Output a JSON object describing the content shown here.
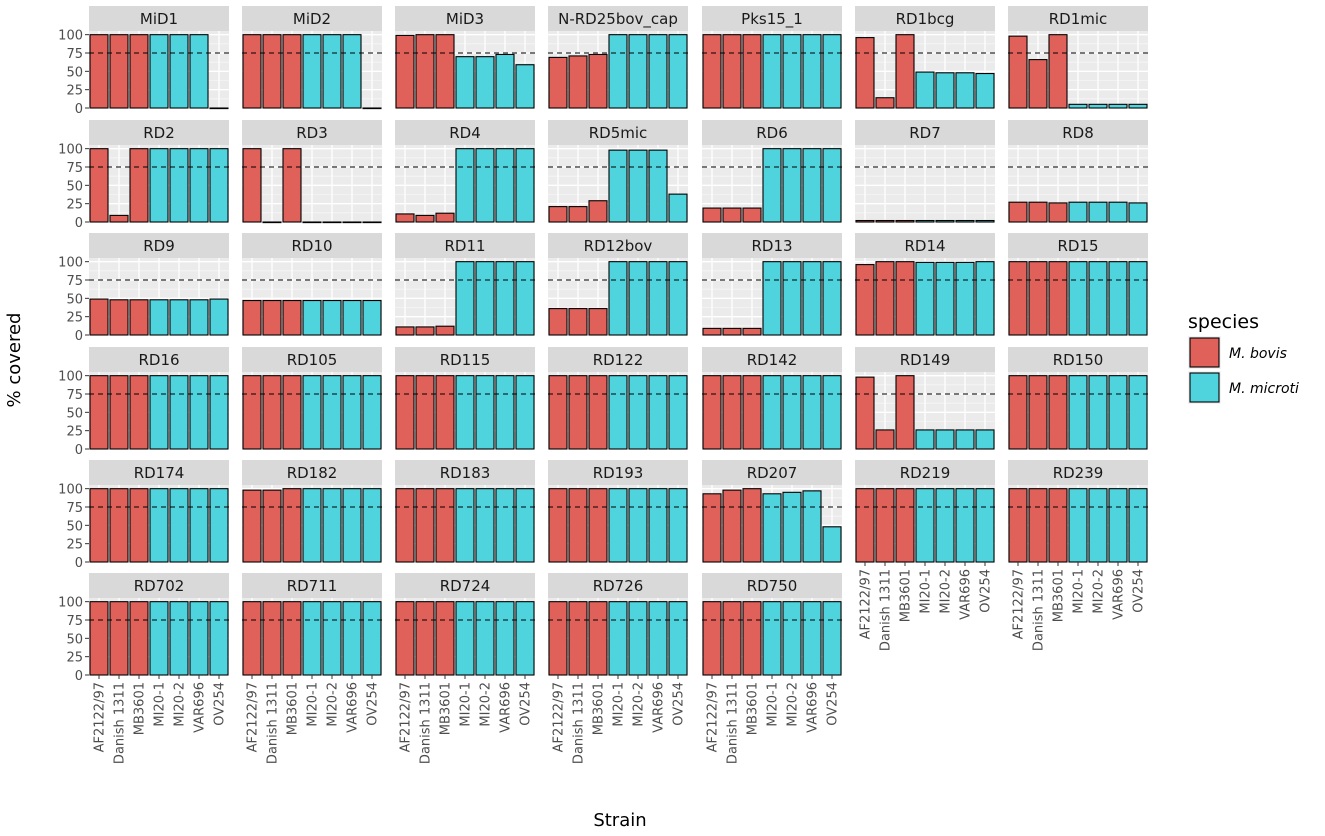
{
  "chart_data": {
    "type": "bar",
    "subtype": "faceted-bar",
    "xlabel": "Strain",
    "ylabel": "% covered",
    "ylim": [
      0,
      105
    ],
    "yticks": [
      0,
      25,
      50,
      75,
      100
    ],
    "reference_line": 75,
    "grid": true,
    "legend_position": "right",
    "strains": [
      "AF2122/97",
      "Danish 1311",
      "MB3601",
      "MI20-1",
      "MI20-2",
      "VAR696",
      "OV254"
    ],
    "strain_species": [
      "M. bovis",
      "M. bovis",
      "M. bovis",
      "M. microti",
      "M. microti",
      "M. microti",
      "M. microti"
    ],
    "legend": {
      "title": "species",
      "entries": [
        {
          "label": "M. bovis",
          "color": "#E0605A"
        },
        {
          "label": "M. microti",
          "color": "#4FD4DE"
        }
      ]
    },
    "panels": [
      {
        "name": "MiD1",
        "values": [
          100,
          100,
          100,
          100,
          100,
          100,
          0
        ]
      },
      {
        "name": "MiD2",
        "values": [
          100,
          100,
          100,
          100,
          100,
          100,
          0
        ]
      },
      {
        "name": "MiD3",
        "values": [
          99,
          100,
          100,
          70,
          70,
          73,
          59
        ]
      },
      {
        "name": "N-RD25bov_cap",
        "values": [
          69,
          71,
          73,
          100,
          100,
          100,
          100
        ]
      },
      {
        "name": "Pks15_1",
        "values": [
          100,
          100,
          100,
          100,
          100,
          100,
          100
        ]
      },
      {
        "name": "RD1bcg",
        "values": [
          96,
          14,
          100,
          49,
          48,
          48,
          47
        ]
      },
      {
        "name": "RD1mic",
        "values": [
          98,
          66,
          100,
          5,
          5,
          5,
          5
        ]
      },
      {
        "name": "RD2",
        "values": [
          100,
          9,
          100,
          100,
          100,
          100,
          100
        ]
      },
      {
        "name": "RD3",
        "values": [
          100,
          0,
          100,
          0,
          0,
          0,
          0
        ]
      },
      {
        "name": "RD4",
        "values": [
          11,
          9,
          12,
          100,
          100,
          100,
          100
        ]
      },
      {
        "name": "RD5mic",
        "values": [
          21,
          21,
          29,
          98,
          98,
          98,
          38
        ]
      },
      {
        "name": "RD6",
        "values": [
          19,
          19,
          19,
          100,
          100,
          100,
          100
        ]
      },
      {
        "name": "RD7",
        "values": [
          2,
          2,
          2,
          2,
          2,
          2,
          2
        ]
      },
      {
        "name": "RD8",
        "values": [
          27,
          27,
          26,
          27,
          27,
          27,
          26
        ]
      },
      {
        "name": "RD9",
        "values": [
          49,
          48,
          48,
          48,
          48,
          48,
          49
        ]
      },
      {
        "name": "RD10",
        "values": [
          47,
          47,
          47,
          47,
          47,
          47,
          47
        ]
      },
      {
        "name": "RD11",
        "values": [
          11,
          11,
          12,
          100,
          100,
          100,
          100
        ]
      },
      {
        "name": "RD12bov",
        "values": [
          36,
          36,
          36,
          100,
          100,
          100,
          100
        ]
      },
      {
        "name": "RD13",
        "values": [
          9,
          9,
          9,
          100,
          100,
          100,
          100
        ]
      },
      {
        "name": "RD14",
        "values": [
          96,
          100,
          100,
          99,
          99,
          99,
          100
        ]
      },
      {
        "name": "RD15",
        "values": [
          100,
          100,
          100,
          100,
          100,
          100,
          100
        ]
      },
      {
        "name": "RD16",
        "values": [
          100,
          100,
          100,
          100,
          100,
          100,
          100
        ]
      },
      {
        "name": "RD105",
        "values": [
          100,
          100,
          100,
          100,
          100,
          100,
          100
        ]
      },
      {
        "name": "RD115",
        "values": [
          100,
          100,
          100,
          100,
          100,
          100,
          100
        ]
      },
      {
        "name": "RD122",
        "values": [
          100,
          100,
          100,
          100,
          100,
          100,
          100
        ]
      },
      {
        "name": "RD142",
        "values": [
          100,
          100,
          100,
          100,
          100,
          100,
          100
        ]
      },
      {
        "name": "RD149",
        "values": [
          98,
          26,
          100,
          26,
          26,
          26,
          26
        ]
      },
      {
        "name": "RD150",
        "values": [
          100,
          100,
          100,
          100,
          100,
          100,
          100
        ]
      },
      {
        "name": "RD174",
        "values": [
          100,
          100,
          100,
          100,
          100,
          100,
          100
        ]
      },
      {
        "name": "RD182",
        "values": [
          98,
          98,
          100,
          100,
          100,
          100,
          100
        ]
      },
      {
        "name": "RD183",
        "values": [
          100,
          100,
          100,
          100,
          100,
          100,
          100
        ]
      },
      {
        "name": "RD193",
        "values": [
          100,
          100,
          100,
          100,
          100,
          100,
          100
        ]
      },
      {
        "name": "RD207",
        "values": [
          93,
          98,
          100,
          93,
          95,
          97,
          48
        ]
      },
      {
        "name": "RD219",
        "values": [
          100,
          100,
          100,
          100,
          100,
          100,
          100
        ]
      },
      {
        "name": "RD239",
        "values": [
          100,
          100,
          100,
          100,
          100,
          100,
          100
        ]
      },
      {
        "name": "RD702",
        "values": [
          100,
          100,
          100,
          100,
          100,
          100,
          100
        ]
      },
      {
        "name": "RD711",
        "values": [
          100,
          100,
          100,
          100,
          100,
          100,
          100
        ]
      },
      {
        "name": "RD724",
        "values": [
          100,
          100,
          100,
          100,
          100,
          100,
          100
        ]
      },
      {
        "name": "RD726",
        "values": [
          100,
          100,
          100,
          100,
          100,
          100,
          100
        ]
      },
      {
        "name": "RD750",
        "values": [
          100,
          100,
          100,
          100,
          100,
          100,
          100
        ]
      }
    ]
  }
}
